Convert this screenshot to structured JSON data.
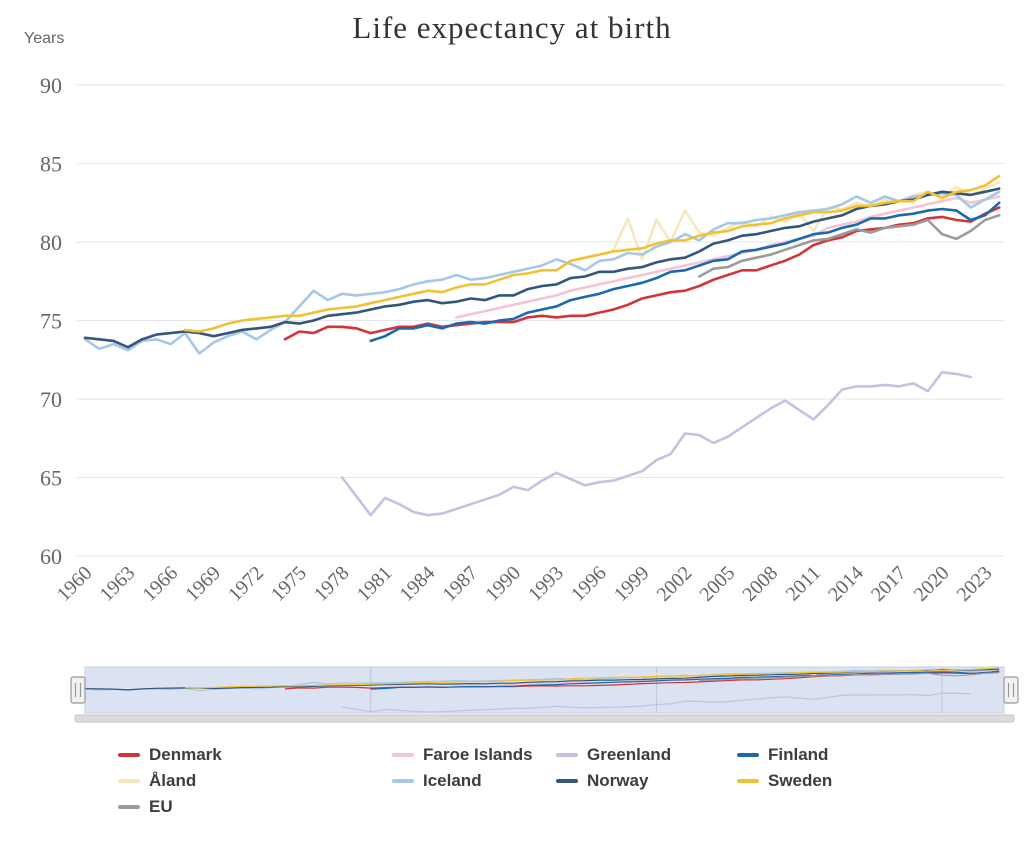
{
  "chart": {
    "title": "Life expectancy at birth",
    "y_axis_label": "Years",
    "navigator": {
      "grid_years": [
        1980,
        2000,
        2020
      ]
    }
  },
  "chart_data": {
    "type": "line",
    "title": "Life expectancy at birth",
    "xlabel": "",
    "ylabel": "Years",
    "ylim": [
      60,
      90
    ],
    "x_range": [
      1960,
      2024
    ],
    "y_ticks": [
      90,
      85,
      80,
      75,
      70,
      65,
      60
    ],
    "x_tick_years": [
      1960,
      1963,
      1966,
      1969,
      1972,
      1975,
      1978,
      1981,
      1984,
      1987,
      1990,
      1993,
      1996,
      1999,
      2002,
      2005,
      2008,
      2011,
      2014,
      2017,
      2020,
      2023
    ],
    "grid": "horizontal",
    "legend_position": "bottom",
    "series": [
      {
        "name": "Denmark",
        "color": "#d23539",
        "start_year": 1974,
        "values": [
          73.8,
          74.3,
          74.2,
          74.6,
          74.6,
          74.5,
          74.2,
          74.4,
          74.6,
          74.6,
          74.8,
          74.6,
          74.7,
          74.8,
          74.9,
          74.9,
          74.9,
          75.2,
          75.3,
          75.2,
          75.3,
          75.3,
          75.5,
          75.7,
          76.0,
          76.4,
          76.6,
          76.8,
          76.9,
          77.2,
          77.6,
          77.9,
          78.2,
          78.2,
          78.5,
          78.8,
          79.2,
          79.8,
          80.1,
          80.3,
          80.7,
          80.8,
          80.9,
          81.1,
          81.2,
          81.5,
          81.6,
          81.4,
          81.3,
          81.8,
          82.2
        ]
      },
      {
        "name": "Faroe Islands",
        "color": "#f5c3d2",
        "start_year": 1986,
        "values": [
          75.2,
          75.4,
          75.6,
          75.8,
          76.0,
          76.2,
          76.4,
          76.6,
          76.9,
          77.1,
          77.3,
          77.5,
          77.7,
          77.9,
          78.1,
          78.3,
          78.5,
          78.7,
          78.9,
          79.1,
          79.3,
          79.5,
          79.8,
          80.0,
          80.2,
          80.4,
          80.9,
          81.1,
          81.3,
          81.6,
          81.8,
          82.0,
          82.2,
          82.4,
          82.6,
          82.8,
          82.5,
          82.7,
          82.9
        ]
      },
      {
        "name": "Greenland",
        "color": "#c2c3e0",
        "start_year": 1978,
        "values": [
          65.0,
          63.8,
          62.6,
          63.7,
          63.3,
          62.8,
          62.6,
          62.7,
          63.0,
          63.3,
          63.6,
          63.9,
          64.4,
          64.2,
          64.8,
          65.3,
          64.9,
          64.5,
          64.7,
          64.8,
          65.1,
          65.4,
          66.1,
          66.5,
          67.8,
          67.7,
          67.2,
          67.6,
          68.2,
          68.8,
          69.4,
          69.9,
          69.3,
          68.7,
          69.6,
          70.6,
          70.8,
          70.8,
          70.9,
          70.8,
          71.0,
          70.5,
          71.7,
          71.6,
          71.4
        ]
      },
      {
        "name": "Finland",
        "color": "#1a69b0",
        "start_year": 1980,
        "values": [
          73.7,
          74.0,
          74.5,
          74.5,
          74.7,
          74.5,
          74.8,
          74.9,
          74.8,
          75.0,
          75.1,
          75.5,
          75.7,
          75.9,
          76.3,
          76.5,
          76.7,
          77.0,
          77.2,
          77.4,
          77.7,
          78.1,
          78.2,
          78.5,
          78.8,
          78.9,
          79.4,
          79.5,
          79.7,
          79.9,
          80.2,
          80.5,
          80.6,
          80.9,
          81.1,
          81.5,
          81.5,
          81.7,
          81.8,
          82.0,
          82.1,
          82.0,
          81.4,
          81.7,
          82.5
        ]
      },
      {
        "name": "Åland",
        "color": "#f5e8bd",
        "start_year": 1997,
        "values": [
          79.5,
          81.5,
          78.9,
          81.4,
          80.0,
          82.0,
          80.6,
          80.4,
          80.9,
          81.3,
          81.0,
          81.6,
          81.3,
          81.8,
          80.7,
          82.2,
          82.1,
          82.5,
          82.3,
          82.7,
          82.6,
          83.0,
          83.2,
          82.9,
          83.5,
          83.0,
          83.4,
          83.8
        ]
      },
      {
        "name": "Iceland",
        "color": "#a5c8e9",
        "start_year": 1960,
        "values": [
          73.8,
          73.2,
          73.5,
          73.1,
          73.7,
          73.8,
          73.5,
          74.2,
          72.9,
          73.6,
          74.0,
          74.3,
          73.8,
          74.4,
          74.9,
          75.9,
          76.9,
          76.3,
          76.7,
          76.6,
          76.7,
          76.8,
          77.0,
          77.3,
          77.5,
          77.6,
          77.9,
          77.6,
          77.7,
          77.9,
          78.1,
          78.3,
          78.5,
          78.9,
          78.6,
          78.2,
          78.8,
          78.9,
          79.3,
          79.2,
          79.7,
          80.0,
          80.5,
          80.1,
          80.8,
          81.2,
          81.2,
          81.4,
          81.5,
          81.7,
          81.9,
          82.0,
          82.1,
          82.4,
          82.9,
          82.5,
          82.9,
          82.6,
          82.9,
          83.0,
          83.1,
          83.0,
          82.2,
          82.7,
          83.2
        ]
      },
      {
        "name": "Norway",
        "color": "#34567a",
        "start_year": 1960,
        "values": [
          73.9,
          73.8,
          73.7,
          73.3,
          73.8,
          74.1,
          74.2,
          74.3,
          74.2,
          74.0,
          74.2,
          74.4,
          74.5,
          74.6,
          74.9,
          74.8,
          75.0,
          75.3,
          75.4,
          75.5,
          75.7,
          75.9,
          76.0,
          76.2,
          76.3,
          76.1,
          76.2,
          76.4,
          76.3,
          76.6,
          76.6,
          77.0,
          77.2,
          77.3,
          77.7,
          77.8,
          78.1,
          78.1,
          78.3,
          78.4,
          78.7,
          78.9,
          79.0,
          79.4,
          79.9,
          80.1,
          80.4,
          80.5,
          80.7,
          80.9,
          81.0,
          81.3,
          81.5,
          81.7,
          82.1,
          82.3,
          82.4,
          82.6,
          82.7,
          83.0,
          83.2,
          83.1,
          83.0,
          83.2,
          83.4
        ]
      },
      {
        "name": "Sweden",
        "color": "#f0c233",
        "start_year": 1967,
        "values": [
          74.4,
          74.3,
          74.5,
          74.8,
          75.0,
          75.1,
          75.2,
          75.3,
          75.3,
          75.5,
          75.7,
          75.8,
          75.9,
          76.1,
          76.3,
          76.5,
          76.7,
          76.9,
          76.8,
          77.1,
          77.3,
          77.3,
          77.6,
          77.9,
          78.0,
          78.2,
          78.2,
          78.8,
          79.0,
          79.2,
          79.4,
          79.5,
          79.6,
          79.9,
          80.1,
          80.1,
          80.4,
          80.6,
          80.7,
          81.0,
          81.1,
          81.2,
          81.5,
          81.7,
          81.9,
          81.9,
          82.0,
          82.3,
          82.3,
          82.5,
          82.6,
          82.6,
          83.2,
          82.8,
          83.2,
          83.3,
          83.6,
          84.2
        ]
      },
      {
        "name": "EU",
        "color": "#9b9b9b",
        "start_year": 2003,
        "values": [
          77.8,
          78.3,
          78.4,
          78.8,
          79.0,
          79.2,
          79.5,
          79.8,
          80.1,
          80.2,
          80.5,
          80.8,
          80.6,
          80.9,
          81.0,
          81.1,
          81.4,
          80.5,
          80.2,
          80.7,
          81.4,
          81.7
        ]
      }
    ]
  }
}
